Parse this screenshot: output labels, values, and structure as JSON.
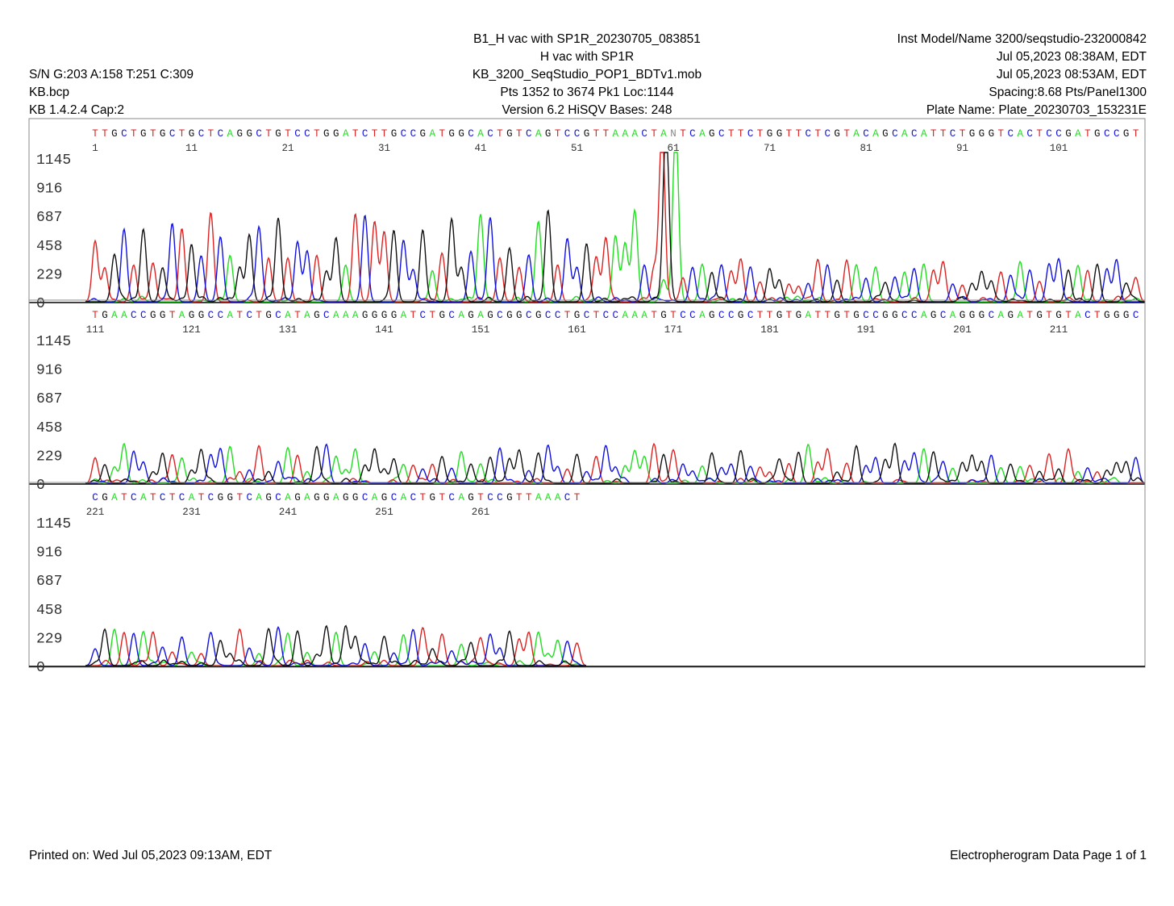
{
  "header": {
    "left": [
      "S/N G:203 A:158 T:251 C:309",
      "KB.bcp",
      "KB 1.4.2.4     Cap:2"
    ],
    "center": [
      "B1_H vac with SP1R_20230705_083851",
      "H vac with SP1R",
      "KB_3200_SeqStudio_POP1_BDTv1.mob",
      "Pts 1352 to 3674 Pk1 Loc:1144",
      "Version 6.2     HiSQV Bases: 248"
    ],
    "right": [
      "Inst Model/Name 3200/seqstudio-232000842",
      "Jul 05,2023 08:38AM, EDT",
      "Jul 05,2023 08:53AM, EDT",
      "Spacing:8.68  Pts/Panel1300",
      "Plate Name: Plate_20230703_153231E"
    ]
  },
  "footer": {
    "left": "Printed on: Wed Jul 05,2023 09:13AM, EDT",
    "right": "Electropherogram Data  Page 1 of 1"
  },
  "colors": {
    "A": "#22dd22",
    "C": "#1111dd",
    "G": "#111111",
    "T": "#dd2222"
  },
  "chart_data": {
    "type": "line",
    "y_ticks": [
      "1145",
      "916",
      "687",
      "458",
      "229",
      "0"
    ],
    "panels": [
      {
        "sequence": "TTGCTGTGCTGCTCAGGCTGTCCTGGATCTTGCCGATGGCACTGTCAGTCCGTTAAACTANTCAGCTTCTGGTTCTCGTACAGCACATTCTGGGTCACTCCGATGCCGT",
        "positions": [
          "1",
          "11",
          "21",
          "31",
          "41",
          "51",
          "61",
          "71",
          "81",
          "91",
          "101"
        ]
      },
      {
        "sequence": "TGAACCGGTAGGCCATCTGCATAGCAAAGGGGATCTGCAGAGCGGCGCCTGCTCCAAATGTCCAGCCGCTTGTGATTGTGCCGGCCAGCAGGGCAGATGTGTACTGGGC",
        "positions": [
          "111",
          "121",
          "131",
          "141",
          "151",
          "161",
          "171",
          "181",
          "191",
          "201",
          "211"
        ]
      },
      {
        "sequence": "CGATCATCTCATCGGTCAGCAGAGGAGGCAGCACTGTCAGTCCGTTAAACT",
        "positions": [
          "221",
          "231",
          "241",
          "251",
          "261"
        ]
      }
    ]
  }
}
